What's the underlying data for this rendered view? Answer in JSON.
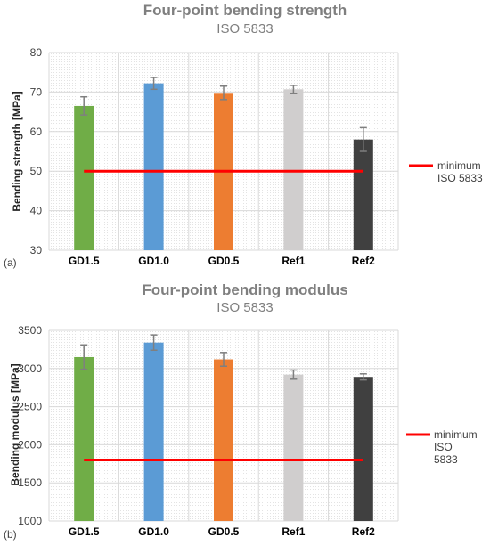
{
  "colors": {
    "GD1.5": "#70ad47",
    "GD1.0": "#5b9bd5",
    "GD0.5": "#ed7d31",
    "Ref1": "#d0cece",
    "Ref2": "#404040",
    "minimum_line": "#ff0000",
    "error_bar": "#7f7f7f",
    "grid": "#d9d9d9"
  },
  "chart_data": [
    {
      "type": "bar",
      "panel_label": "(a)",
      "title": "Four-point bending strength",
      "subtitle": "ISO 5833",
      "xlabel": "",
      "ylabel": "Bending strength [MPa]",
      "categories": [
        "GD1.5",
        "GD1.0",
        "GD0.5",
        "Ref1",
        "Ref2"
      ],
      "values": [
        66.5,
        72.2,
        69.8,
        70.7,
        58.0
      ],
      "errors": [
        2.3,
        1.5,
        1.7,
        1.0,
        3.0
      ],
      "ylim": [
        30,
        80
      ],
      "yticks": [
        30,
        40,
        50,
        60,
        70,
        80
      ],
      "grid": true,
      "reference_line": {
        "value": 50,
        "label_line1": "minimum",
        "label_line2": "ISO 5833"
      },
      "legend_position": "right"
    },
    {
      "type": "bar",
      "panel_label": "(b)",
      "title": "Four-point bending modulus",
      "subtitle": "ISO 5833",
      "xlabel": "",
      "ylabel": "Bending modulus [MPa]",
      "categories": [
        "GD1.5",
        "GD1.0",
        "GD0.5",
        "Ref1",
        "Ref2"
      ],
      "values": [
        3150,
        3340,
        3120,
        2920,
        2890
      ],
      "errors": [
        160,
        100,
        90,
        60,
        40
      ],
      "ylim": [
        1000,
        3500
      ],
      "yticks": [
        1000,
        1500,
        2000,
        2500,
        3000,
        3500
      ],
      "grid": true,
      "reference_line": {
        "value": 1800,
        "label_line1": "minimum",
        "label_line2": "ISO",
        "label_line3": "5833"
      },
      "legend_position": "right"
    }
  ]
}
